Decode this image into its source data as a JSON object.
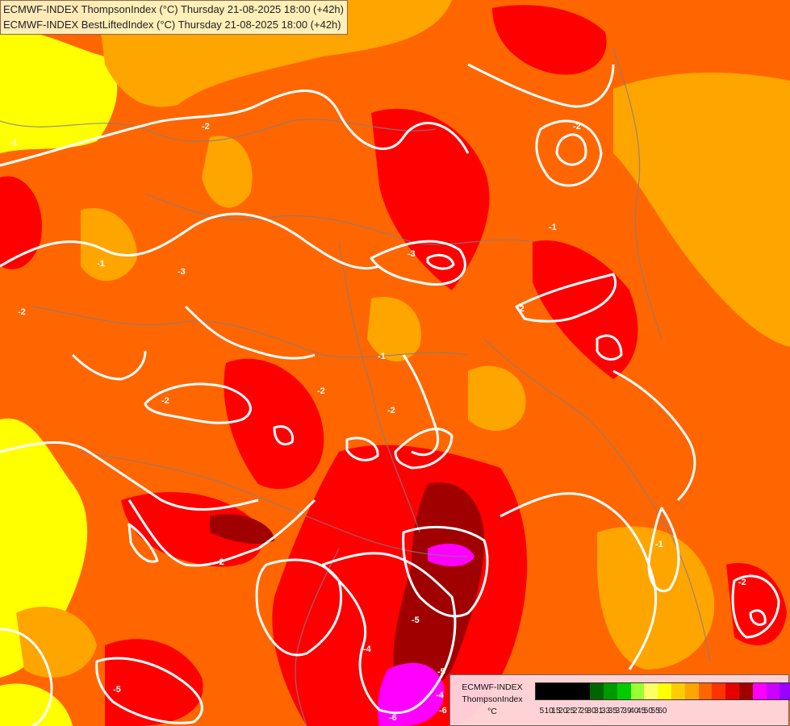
{
  "header": {
    "line1": "ECMWF-INDEX ThompsonIndex (°C) Thursday 21-08-2025 18:00 (+42h)",
    "line2": "ECMWF-INDEX BestLiftedIndex (°C) Thursday 21-08-2025 18:00 (+42h)"
  },
  "legend": {
    "line1": "ECMWF-INDEX",
    "line2": "ThompsonIndex",
    "line3": "°C",
    "colors": [
      "#000000",
      "#000000",
      "#000000",
      "#000000",
      "#006400",
      "#009900",
      "#00cc00",
      "#99ff33",
      "#ffff66",
      "#ffff00",
      "#ffcc00",
      "#ffa500",
      "#ff6600",
      "#ff3300",
      "#e60000",
      "#a00000",
      "#ff00ff",
      "#cc00ff",
      "#9900ff",
      "#6600ff",
      "#0000ff"
    ],
    "ticks": [
      "5",
      "10",
      "15",
      "20",
      "25",
      "27",
      "29",
      "30",
      "31",
      "33",
      "35",
      "37",
      "39",
      "40",
      "45",
      "50",
      "55",
      "60"
    ]
  },
  "contour_labels": [
    "-2",
    "-2",
    "-3",
    "-3",
    "-2",
    "-1",
    "-2",
    "-2",
    "-2",
    "-1",
    "-2",
    "-1",
    "-2",
    "-4",
    "-5",
    "-6",
    "-5",
    "-4",
    "-1",
    "-5",
    "-6",
    "-2",
    "-1"
  ]
}
